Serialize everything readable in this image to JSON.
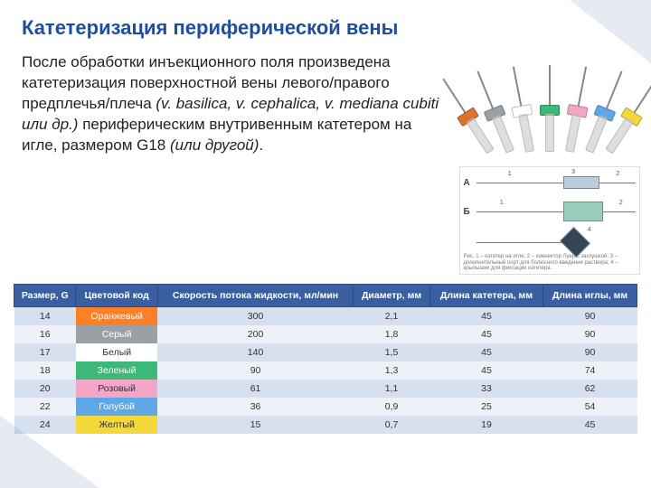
{
  "title": "Катетеризация периферической вены",
  "paragraph": {
    "p1": "После обработки инъекционного поля произведена катетеризация поверхностной вены левого/правого предплечья/плеча ",
    "i1": "(v. basilica, v. cephalica, v. mediana cubiti или др.)",
    "p2": " периферическим внутривенным катетером на игле, размером G18 ",
    "i2": "(или другой)",
    "p3": "."
  },
  "fan_colors": [
    "#e07030",
    "#9aa1a6",
    "#ffffff",
    "#3cb878",
    "#f4a6c6",
    "#5ea8e6",
    "#f4d83a"
  ],
  "diagram_labels": {
    "a": "А",
    "b": "Б",
    "caption": "Рис.\n1 – катетер на игле;\n2 – коннектор Луер с заглушкой;\n3 – дополнительный порт для болюсного введения раствора;\n4 – крылышки для фиксации катетера."
  },
  "table": {
    "type": "table",
    "header_bg": "#3a5fa0",
    "header_fg": "#ffffff",
    "band_a_bg": "#d6e0ef",
    "band_b_bg": "#eef2f8",
    "columns": [
      "Размер, G",
      "Цветовой код",
      "Скорость потока жидкости, мл/мин",
      "Диаметр, мм",
      "Длина катетера, мм",
      "Длина иглы, мм"
    ],
    "rows": [
      {
        "size": "14",
        "color_label": "Оранжевый",
        "color_bg": "#ff7f27",
        "color_fg": "#ffffff",
        "flow": "300",
        "dia": "2,1",
        "cath_len": "45",
        "ndl_len": "90"
      },
      {
        "size": "16",
        "color_label": "Серый",
        "color_bg": "#9aa1a6",
        "color_fg": "#ffffff",
        "flow": "200",
        "dia": "1,8",
        "cath_len": "45",
        "ndl_len": "90"
      },
      {
        "size": "17",
        "color_label": "Белый",
        "color_bg": "#ffffff",
        "color_fg": "#333333",
        "flow": "140",
        "dia": "1,5",
        "cath_len": "45",
        "ndl_len": "90"
      },
      {
        "size": "18",
        "color_label": "Зеленый",
        "color_bg": "#3cb878",
        "color_fg": "#ffffff",
        "flow": "90",
        "dia": "1,3",
        "cath_len": "45",
        "ndl_len": "74"
      },
      {
        "size": "20",
        "color_label": "Розовый",
        "color_bg": "#f4a6c6",
        "color_fg": "#333333",
        "flow": "61",
        "dia": "1,1",
        "cath_len": "33",
        "ndl_len": "62"
      },
      {
        "size": "22",
        "color_label": "Голубой",
        "color_bg": "#5ea8e6",
        "color_fg": "#ffffff",
        "flow": "36",
        "dia": "0,9",
        "cath_len": "25",
        "ndl_len": "54"
      },
      {
        "size": "24",
        "color_label": "Желтый",
        "color_bg": "#f4d83a",
        "color_fg": "#333333",
        "flow": "15",
        "dia": "0,7",
        "cath_len": "19",
        "ndl_len": "45"
      }
    ]
  }
}
